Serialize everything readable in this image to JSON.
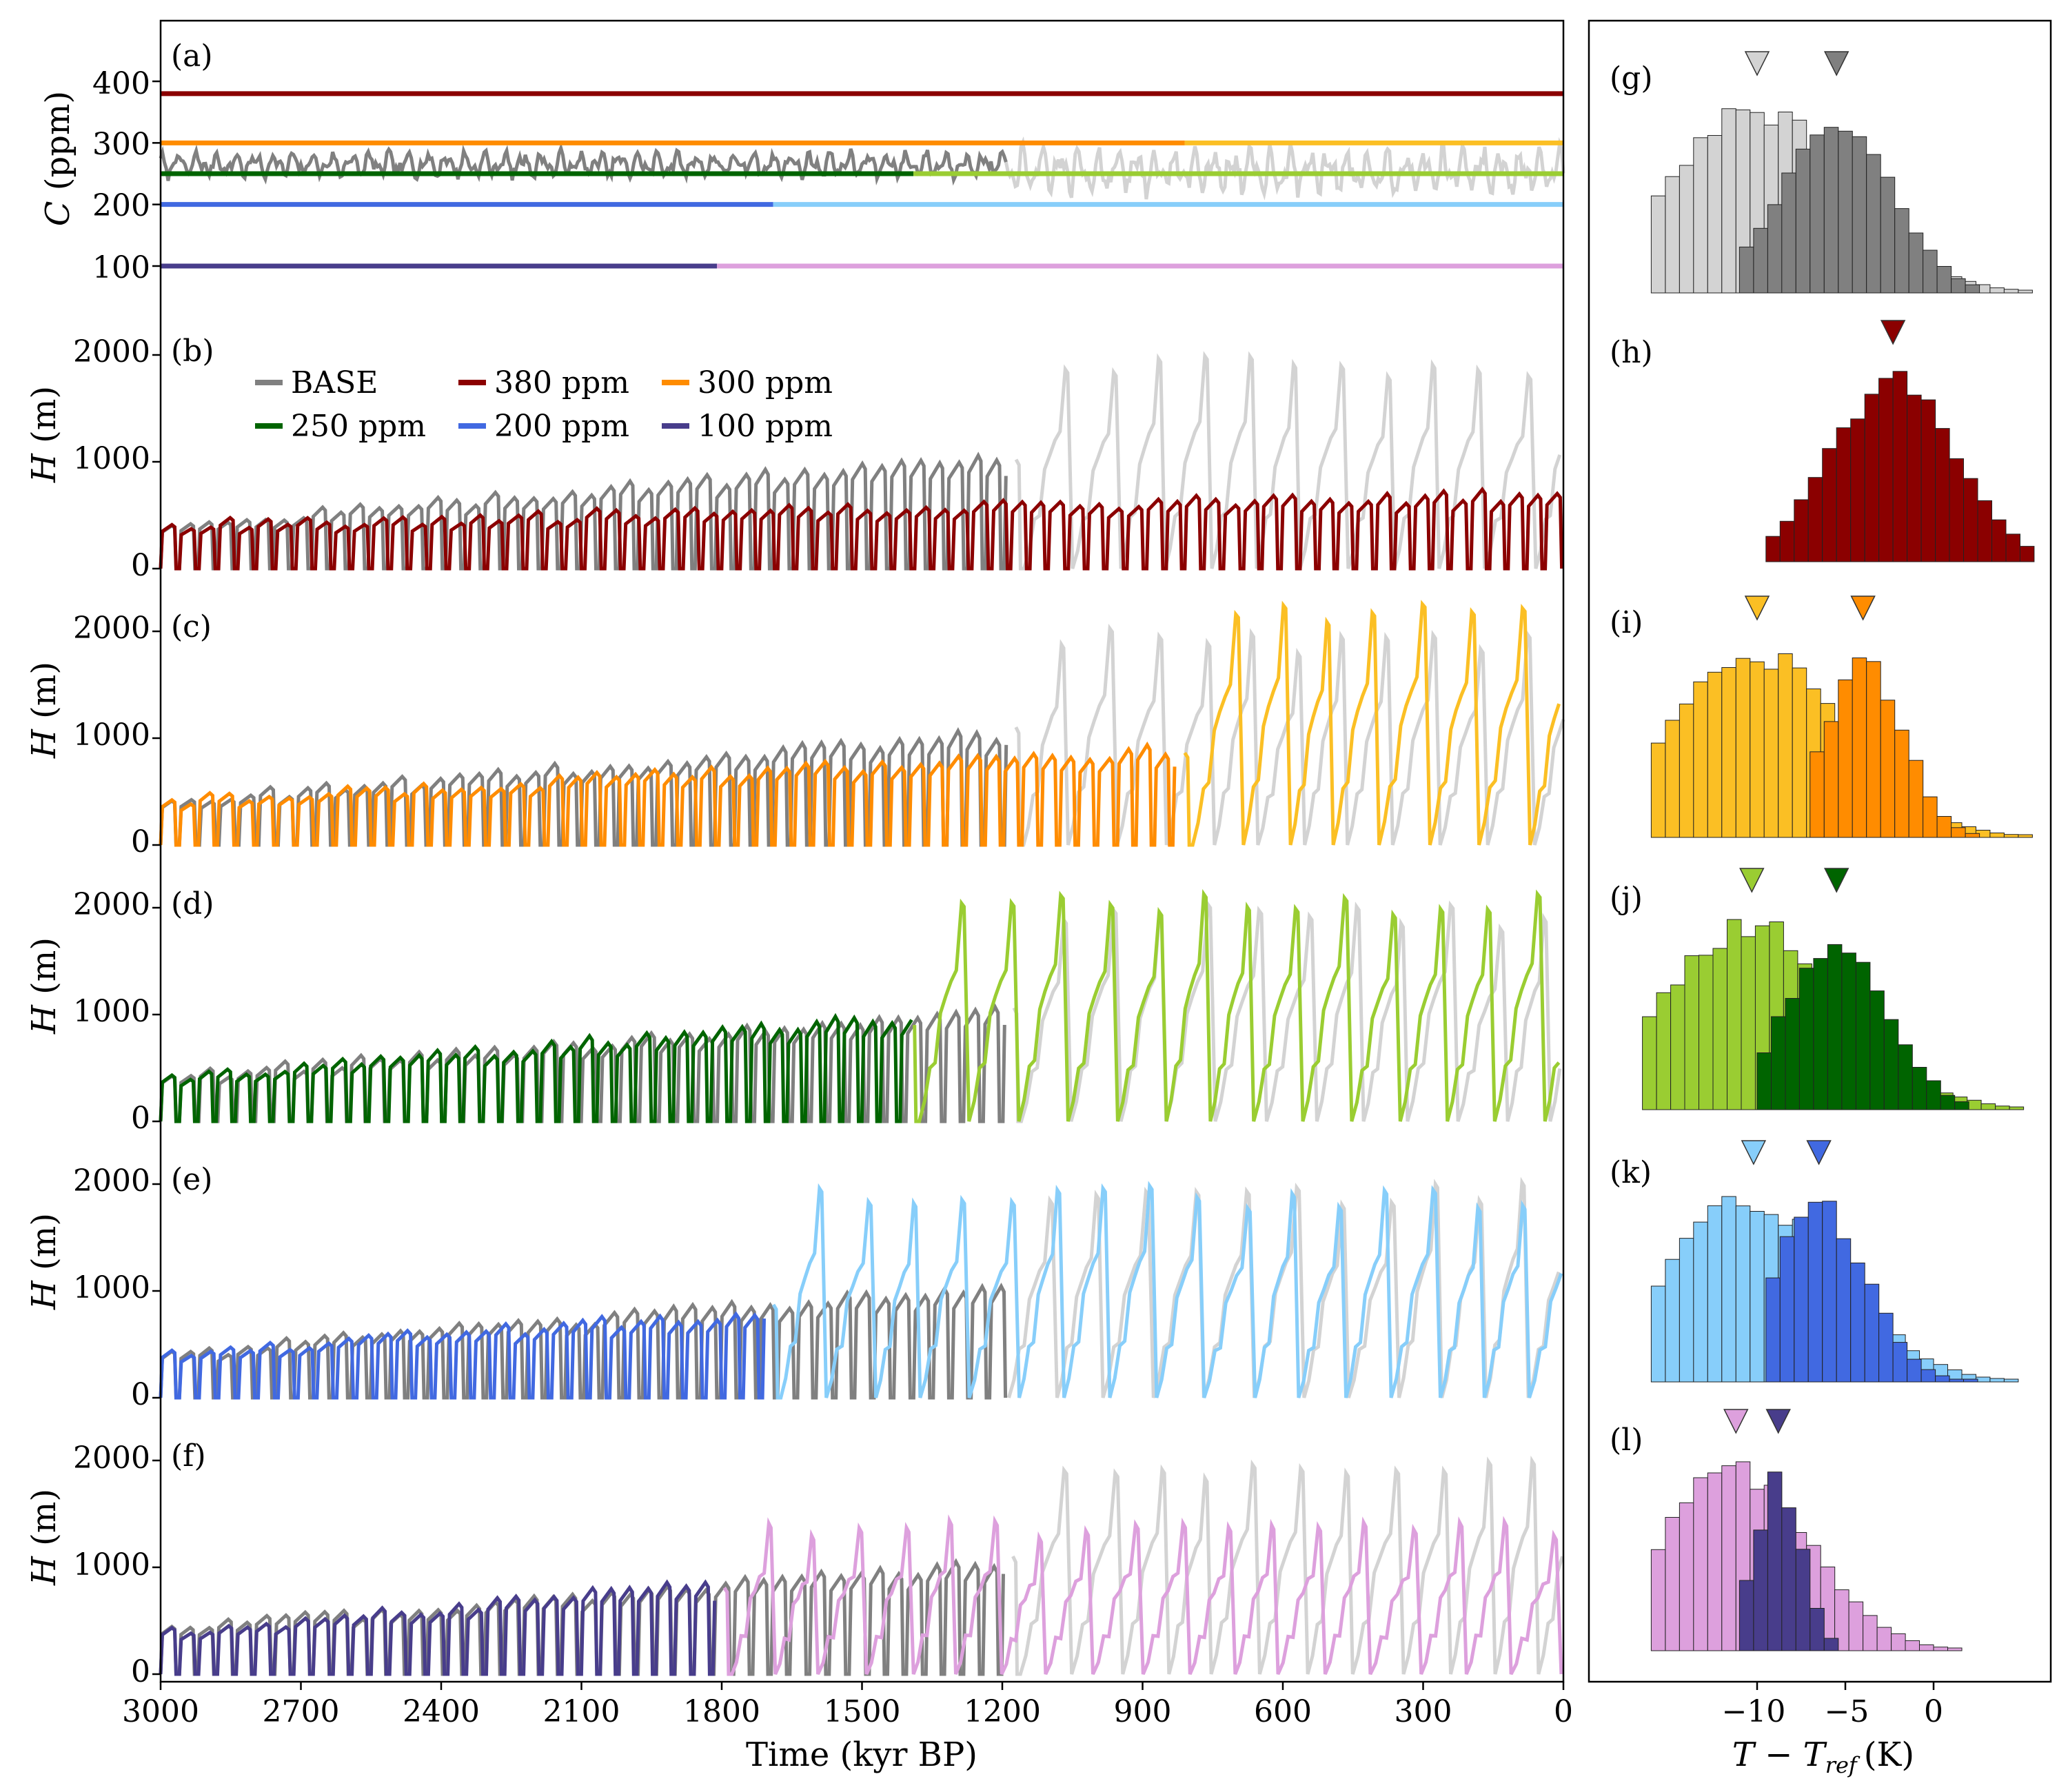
{
  "colors": {
    "base_dark": "#808080",
    "base_light": "#d3d3d3",
    "c380": "#8b0000",
    "c300_dark": "#ff8c00",
    "c300_light": "#fbbf24",
    "c250_dark": "#006400",
    "c250_light": "#9acd32",
    "c200_dark": "#4169e1",
    "c200_light": "#87cefa",
    "c100_dark": "#483d8b",
    "c100_light": "#dda0dd"
  },
  "legend": {
    "base": "BASE",
    "c380": "380 ppm",
    "c300": "300 ppm",
    "c250": "250 ppm",
    "c200": "200 ppm",
    "c100": "100 ppm"
  },
  "x_axis": {
    "label": "Time (kyr BP)",
    "ticks": [
      "3000",
      "2700",
      "2400",
      "2100",
      "1800",
      "1500",
      "1200",
      "900",
      "600",
      "300",
      "0"
    ]
  },
  "hist_axis": {
    "label_main": "T − T",
    "label_sub": "ref",
    "label_unit": "(K)",
    "ticks": [
      "−10",
      "−5",
      "0"
    ]
  },
  "panel_a": {
    "tag": "(a)",
    "ylabel_var": "C",
    "ylabel_unit": "(ppm)",
    "yticks": [
      "100",
      "200",
      "300",
      "400"
    ]
  },
  "ice_ylabel": {
    "var": "H",
    "unit": "(m)"
  },
  "panels_ice": [
    {
      "tag": "(b)",
      "yticks": [
        "0",
        "1000",
        "2000"
      ]
    },
    {
      "tag": "(c)",
      "yticks": [
        "0",
        "1000",
        "2000"
      ]
    },
    {
      "tag": "(d)",
      "yticks": [
        "0",
        "1000",
        "2000"
      ]
    },
    {
      "tag": "(e)",
      "yticks": [
        "0",
        "1000",
        "2000"
      ]
    },
    {
      "tag": "(f)",
      "yticks": [
        "0",
        "1000",
        "2000"
      ]
    }
  ],
  "hist_tags": [
    "(g)",
    "(h)",
    "(i)",
    "(j)",
    "(k)",
    "(l)"
  ],
  "chart_data": [
    {
      "type": "line",
      "panel": "a",
      "xlabel": "Time (kyr BP)",
      "ylabel": "C (ppm)",
      "xlim": [
        3000,
        0
      ],
      "ylim": [
        60,
        500
      ],
      "series": [
        {
          "name": "380 ppm",
          "constant": 380,
          "x_range": [
            3000,
            0
          ],
          "color": "#8b0000"
        },
        {
          "name": "300 ppm",
          "constant": 300,
          "segments": [
            {
              "x_range": [
                3000,
                810
              ],
              "color": "#ff8c00"
            },
            {
              "x_range": [
                810,
                0
              ],
              "color": "#fbbf24"
            }
          ]
        },
        {
          "name": "250 ppm",
          "constant": 250,
          "segments": [
            {
              "x_range": [
                3000,
                1390
              ],
              "color": "#006400"
            },
            {
              "x_range": [
                1390,
                0
              ],
              "color": "#9acd32"
            }
          ]
        },
        {
          "name": "200 ppm",
          "constant": 200,
          "segments": [
            {
              "x_range": [
                3000,
                1690
              ],
              "color": "#4169e1"
            },
            {
              "x_range": [
                1690,
                0
              ],
              "color": "#87cefa"
            }
          ]
        },
        {
          "name": "100 ppm",
          "constant": 100,
          "segments": [
            {
              "x_range": [
                3000,
                1810
              ],
              "color": "#483d8b"
            },
            {
              "x_range": [
                1810,
                0
              ],
              "color": "#dda0dd"
            }
          ]
        },
        {
          "name": "BASE",
          "note": "oscillating CO2, approx range 235-290 ppm before 1200 kyr BP and 205-310 ppm after",
          "segments": [
            {
              "x_range": [
                3000,
                1190
              ],
              "color": "#808080"
            },
            {
              "x_range": [
                1190,
                0
              ],
              "color": "#d3d3d3"
            }
          ]
        }
      ]
    },
    {
      "type": "line",
      "panel": "b",
      "ylabel": "H (m)",
      "xlim": [
        3000,
        0
      ],
      "ylim": [
        0,
        2350
      ],
      "series": [
        {
          "name": "BASE",
          "transition_kyr": 1190,
          "period_kyr": [
            41,
            41,
            100
          ],
          "amplitude_m": [
            420,
            1060,
            2000
          ]
        },
        {
          "name": "380 ppm",
          "transition_kyr": null,
          "period_kyr": [
            41,
            41
          ],
          "amplitude_m": [
            420,
            700
          ]
        }
      ]
    },
    {
      "type": "line",
      "panel": "c",
      "ylabel": "H (m)",
      "xlim": [
        3000,
        0
      ],
      "ylim": [
        0,
        2350
      ],
      "series": [
        {
          "name": "BASE",
          "transition_kyr": 1190,
          "period_kyr": [
            41,
            41,
            100
          ],
          "amplitude_m": [
            420,
            1060,
            2000
          ]
        },
        {
          "name": "300 ppm",
          "transition_kyr": 810,
          "period_kyr": [
            41,
            41,
            100
          ],
          "amplitude_m": [
            420,
            900,
            2250
          ]
        }
      ]
    },
    {
      "type": "line",
      "panel": "d",
      "ylabel": "H (m)",
      "xlim": [
        3000,
        0
      ],
      "ylim": [
        0,
        2350
      ],
      "series": [
        {
          "name": "BASE",
          "transition_kyr": 1190,
          "period_kyr": [
            41,
            41,
            100
          ],
          "amplitude_m": [
            420,
            1060,
            2000
          ]
        },
        {
          "name": "250 ppm",
          "transition_kyr": 1390,
          "period_kyr": [
            41,
            41,
            100
          ],
          "amplitude_m": [
            420,
            1000,
            2150
          ]
        }
      ]
    },
    {
      "type": "line",
      "panel": "e",
      "ylabel": "H (m)",
      "xlim": [
        3000,
        0
      ],
      "ylim": [
        0,
        2350
      ],
      "series": [
        {
          "name": "BASE",
          "transition_kyr": 1190,
          "period_kyr": [
            41,
            41,
            100
          ],
          "amplitude_m": [
            420,
            1060,
            2000
          ]
        },
        {
          "name": "200 ppm",
          "transition_kyr": 1690,
          "period_kyr": [
            41,
            41,
            100
          ],
          "amplitude_m": [
            420,
            820,
            1950
          ]
        }
      ]
    },
    {
      "type": "line",
      "panel": "f",
      "ylabel": "H (m)",
      "xlim": [
        3000,
        0
      ],
      "ylim": [
        0,
        2350
      ],
      "series": [
        {
          "name": "BASE",
          "transition_kyr": 1190,
          "period_kyr": [
            41,
            41,
            100
          ],
          "amplitude_m": [
            420,
            1060,
            2000
          ]
        },
        {
          "name": "100 ppm",
          "transition_kyr": 1810,
          "period_kyr": [
            41,
            41,
            100
          ],
          "amplitude_m": [
            400,
            860,
            1400
          ]
        }
      ]
    },
    {
      "type": "bar",
      "panel": "g",
      "xlabel": "T − Tref (K)",
      "xlim": [
        -16.5,
        6
      ],
      "series": [
        {
          "name": "BASE before transition",
          "color": "#808080",
          "mean_marker": -5.5,
          "approx_range": [
            -11,
            2
          ]
        },
        {
          "name": "BASE after transition",
          "color": "#d3d3d3",
          "mean_marker": -10,
          "approx_range": [
            -16,
            5.5
          ]
        }
      ]
    },
    {
      "type": "bar",
      "panel": "h",
      "xlim": [
        -16.5,
        6
      ],
      "series": [
        {
          "name": "380 ppm",
          "color": "#8b0000",
          "mean_marker": -2.3,
          "approx_range": [
            -9.5,
            5
          ]
        }
      ]
    },
    {
      "type": "bar",
      "panel": "i",
      "xlim": [
        -16.5,
        6
      ],
      "series": [
        {
          "name": "300 ppm before transition",
          "color": "#ff8c00",
          "mean_marker": -4,
          "approx_range": [
            -7,
            2.5
          ]
        },
        {
          "name": "300 ppm after transition",
          "color": "#fbbf24",
          "mean_marker": -10,
          "approx_range": [
            -16,
            5
          ]
        }
      ]
    },
    {
      "type": "bar",
      "panel": "j",
      "xlim": [
        -16.5,
        6
      ],
      "series": [
        {
          "name": "250 ppm before transition",
          "color": "#006400",
          "mean_marker": -5.5,
          "approx_range": [
            -10,
            2
          ]
        },
        {
          "name": "250 ppm after transition",
          "color": "#9acd32",
          "mean_marker": -10.3,
          "approx_range": [
            -16.5,
            5
          ]
        }
      ]
    },
    {
      "type": "bar",
      "panel": "k",
      "xlim": [
        -16.5,
        6
      ],
      "series": [
        {
          "name": "200 ppm before transition",
          "color": "#4169e1",
          "mean_marker": -6.5,
          "approx_range": [
            -9.5,
            2
          ]
        },
        {
          "name": "200 ppm after transition",
          "color": "#87cefa",
          "mean_marker": -10.2,
          "approx_range": [
            -16,
            4.5
          ]
        }
      ]
    },
    {
      "type": "bar",
      "panel": "l",
      "xlim": [
        -16.5,
        6
      ],
      "series": [
        {
          "name": "100 ppm before transition",
          "color": "#483d8b",
          "mean_marker": -8.8,
          "approx_range": [
            -11,
            -5.5
          ]
        },
        {
          "name": "100 ppm after transition",
          "color": "#dda0dd",
          "mean_marker": -11.2,
          "approx_range": [
            -16,
            1.5
          ]
        }
      ]
    }
  ]
}
